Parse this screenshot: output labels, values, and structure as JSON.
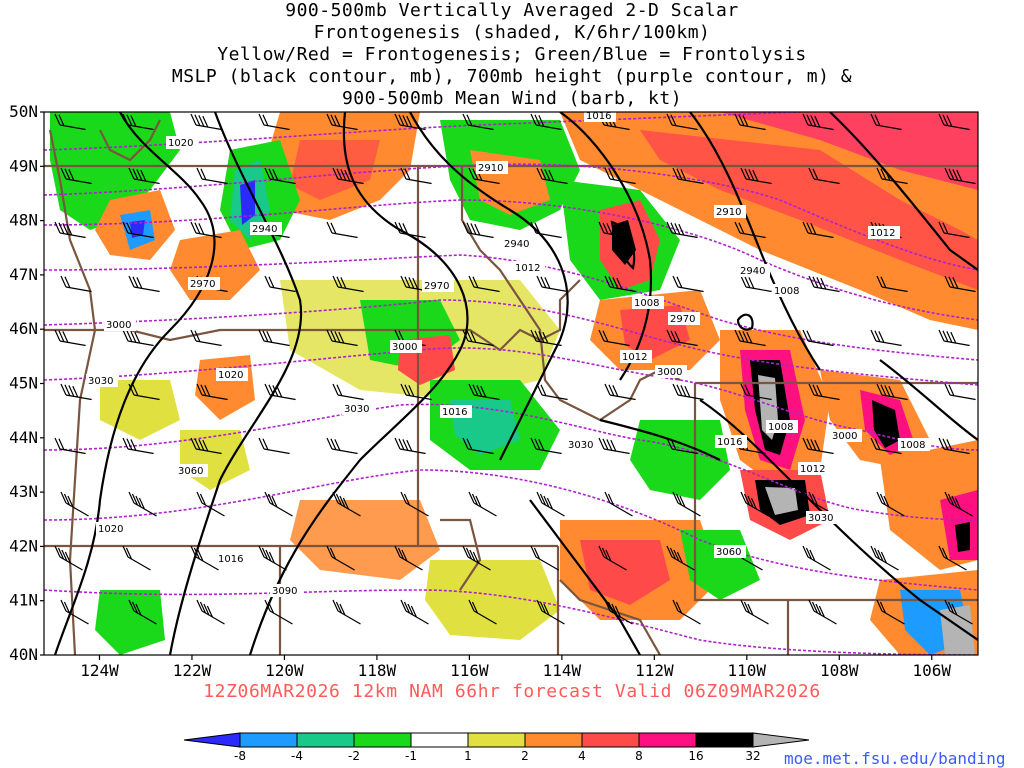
{
  "title": {
    "line1": "900-500mb Vertically Averaged 2-D Scalar",
    "line2": "Frontogenesis (shaded, K/6hr/100km)",
    "line3": "Yellow/Red = Frontogenesis;  Green/Blue = Frontolysis",
    "line4": "MSLP (black contour, mb), 700mb height (purple contour, m) &",
    "line5": "900-500mb Mean Wind (barb, kt)"
  },
  "axes": {
    "lat_labels": [
      "50N",
      "49N",
      "48N",
      "47N",
      "46N",
      "45N",
      "44N",
      "43N",
      "42N",
      "41N",
      "40N"
    ],
    "lon_labels": [
      "124W",
      "122W",
      "120W",
      "118W",
      "116W",
      "114W",
      "112W",
      "110W",
      "108W",
      "106W"
    ]
  },
  "valid_line": "12Z06MAR2026 12km NAM 66hr forecast Valid 06Z09MAR2026",
  "credit": "moe.met.fsu.edu/banding",
  "colorbar": {
    "labels": [
      "-8",
      "-4",
      "-2",
      "-1",
      "1",
      "2",
      "4",
      "8",
      "16",
      "32"
    ],
    "colors": [
      "#2b2bff",
      "#1e9bff",
      "#18c98a",
      "#1ad81a",
      "#ffffff",
      "#e0e040",
      "#ff8a30",
      "#ff4a4a",
      "#ff1080",
      "#000000",
      "#b4b4b4"
    ]
  },
  "mslp_labels": [
    "1020",
    "1012",
    "1008",
    "1012",
    "1008",
    "1020",
    "1016",
    "1016",
    "1012",
    "1016",
    "1008",
    "1020",
    "1016",
    "1012",
    "1008"
  ],
  "height_labels": [
    "2910",
    "2910",
    "2940",
    "2940",
    "2940",
    "2970",
    "2970",
    "2970",
    "3000",
    "3000",
    "3000",
    "3000",
    "3030",
    "3030",
    "3030",
    "3030",
    "3060",
    "3060",
    "3090"
  ],
  "chart_data": {
    "type": "heatmap",
    "title": "900-500mb Vertically Averaged 2-D Scalar Frontogenesis (shaded, K/6hr/100km)",
    "xlabel": "",
    "ylabel": "",
    "x_ticks": [
      "124W",
      "122W",
      "120W",
      "118W",
      "116W",
      "114W",
      "112W",
      "110W",
      "108W",
      "106W"
    ],
    "y_ticks": [
      "50N",
      "49N",
      "48N",
      "47N",
      "46N",
      "45N",
      "44N",
      "43N",
      "42N",
      "41N",
      "40N"
    ],
    "lon_range": [
      -125.2,
      -105.0
    ],
    "lat_range": [
      40,
      50
    ],
    "color_levels": [
      -8,
      -4,
      -2,
      -1,
      1,
      2,
      4,
      8,
      16,
      32
    ],
    "mslp_contours_mb": [
      1008,
      1012,
      1016,
      1020
    ],
    "height_contours_m": [
      2910,
      2940,
      2970,
      3000,
      3030,
      3060,
      3090
    ]
  }
}
